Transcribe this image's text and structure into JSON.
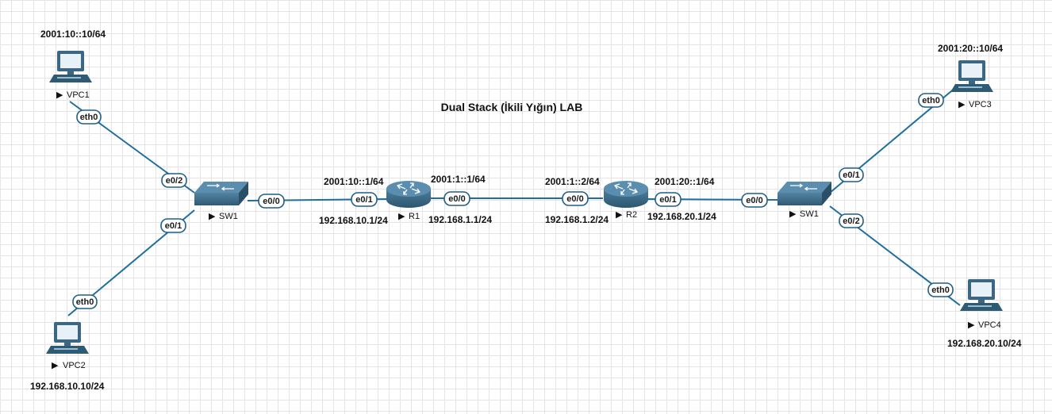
{
  "diagram": {
    "title": "Dual Stack (İkili Yığın) LAB",
    "nodes": {
      "vpc1": {
        "name": "VPC1",
        "ipv6": "2001:10::10/64"
      },
      "vpc2": {
        "name": "VPC2",
        "ipv4": "192.168.10.10/24"
      },
      "vpc3": {
        "name": "VPC3",
        "ipv6": "2001:20::10/64"
      },
      "vpc4": {
        "name": "VPC4",
        "ipv4": "192.168.20.10/24"
      },
      "sw_left": {
        "name": "SW1"
      },
      "sw_right": {
        "name": "SW1"
      },
      "r1": {
        "name": "R1",
        "e01_ipv6": "2001:10::1/64",
        "e01_ipv4": "192.168.10.1/24",
        "e00_ipv6": "2001:1::1/64",
        "e00_ipv4": "192.168.1.1/24"
      },
      "r2": {
        "name": "R2",
        "e00_ipv6": "2001:1::2/64",
        "e00_ipv4": "192.168.1.2/24",
        "e01_ipv6": "2001:20::1/64",
        "e01_ipv4": "192.168.20.1/24"
      }
    },
    "ports": {
      "vpc1_eth0": "eth0",
      "swl_e02": "e0/2",
      "swl_e01": "e0/1",
      "vpc2_eth0": "eth0",
      "swl_e00": "e0/0",
      "r1_e01": "e0/1",
      "r1_e00": "e0/0",
      "r2_e00": "e0/0",
      "r2_e01": "e0/1",
      "swr_e00": "e0/0",
      "swr_e01": "e0/1",
      "swr_e02": "e0/2",
      "vpc3_eth0": "eth0",
      "vpc4_eth0": "eth0"
    },
    "colors": {
      "link": "#1f6e9c",
      "device": "#3b6783",
      "port_border": "#1f5f86"
    },
    "icons": {
      "pc": "pc-icon",
      "switch": "switch-icon",
      "router": "router-icon",
      "play": "play-icon"
    }
  }
}
